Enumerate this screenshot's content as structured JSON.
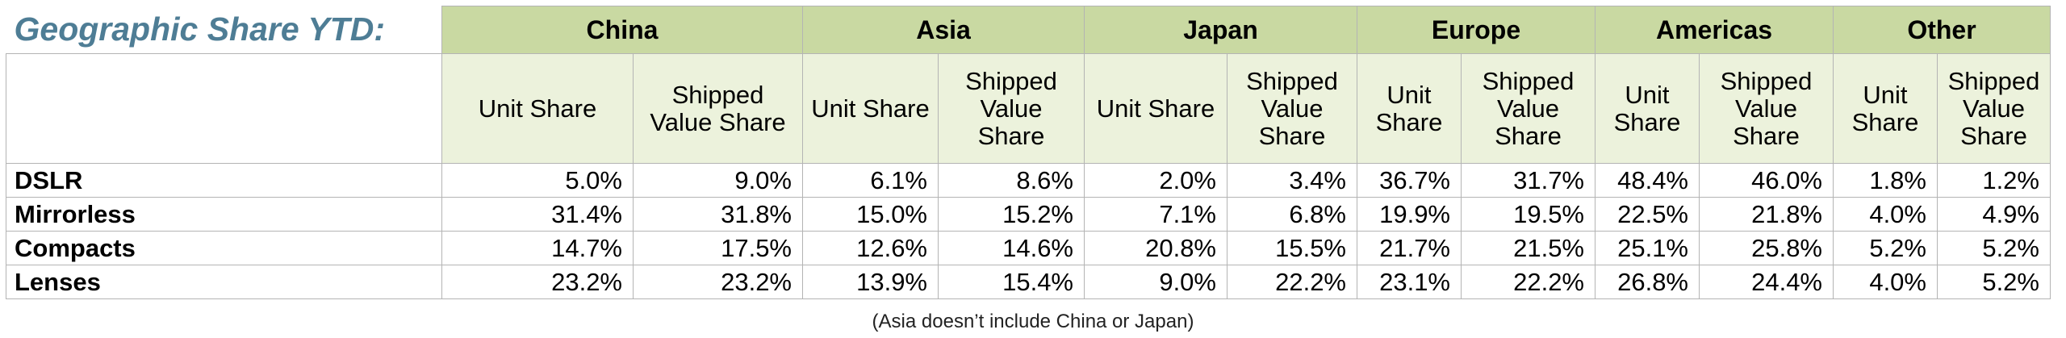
{
  "title": "Geographic Share YTD:",
  "regions": [
    "China",
    "Asia",
    "Japan",
    "Europe",
    "Americas",
    "Other"
  ],
  "subheaders": [
    "Unit Share",
    "Shipped Value Share",
    "Unit Share",
    "Shipped Value Share",
    "Unit Share",
    "Shipped Value Share",
    "Unit Share",
    "Shipped Value Share",
    "Unit Share",
    "Shipped Value Share",
    "Unit Share",
    "Shipped Value Share"
  ],
  "rows": [
    {
      "label": "DSLR",
      "values": [
        "5.0%",
        "9.0%",
        "6.1%",
        "8.6%",
        "2.0%",
        "3.4%",
        "36.7%",
        "31.7%",
        "48.4%",
        "46.0%",
        "1.8%",
        "1.2%"
      ]
    },
    {
      "label": "Mirrorless",
      "values": [
        "31.4%",
        "31.8%",
        "15.0%",
        "15.2%",
        "7.1%",
        "6.8%",
        "19.9%",
        "19.5%",
        "22.5%",
        "21.8%",
        "4.0%",
        "4.9%"
      ]
    },
    {
      "label": "Compacts",
      "values": [
        "14.7%",
        "17.5%",
        "12.6%",
        "14.6%",
        "20.8%",
        "15.5%",
        "21.7%",
        "21.5%",
        "25.1%",
        "25.8%",
        "5.2%",
        "5.2%"
      ]
    },
    {
      "label": "Lenses",
      "values": [
        "23.2%",
        "23.2%",
        "13.9%",
        "15.4%",
        "9.0%",
        "22.2%",
        "23.1%",
        "22.2%",
        "26.8%",
        "24.4%",
        "4.0%",
        "5.2%"
      ]
    }
  ],
  "footnote": "(Asia doesn’t include China or Japan)"
}
